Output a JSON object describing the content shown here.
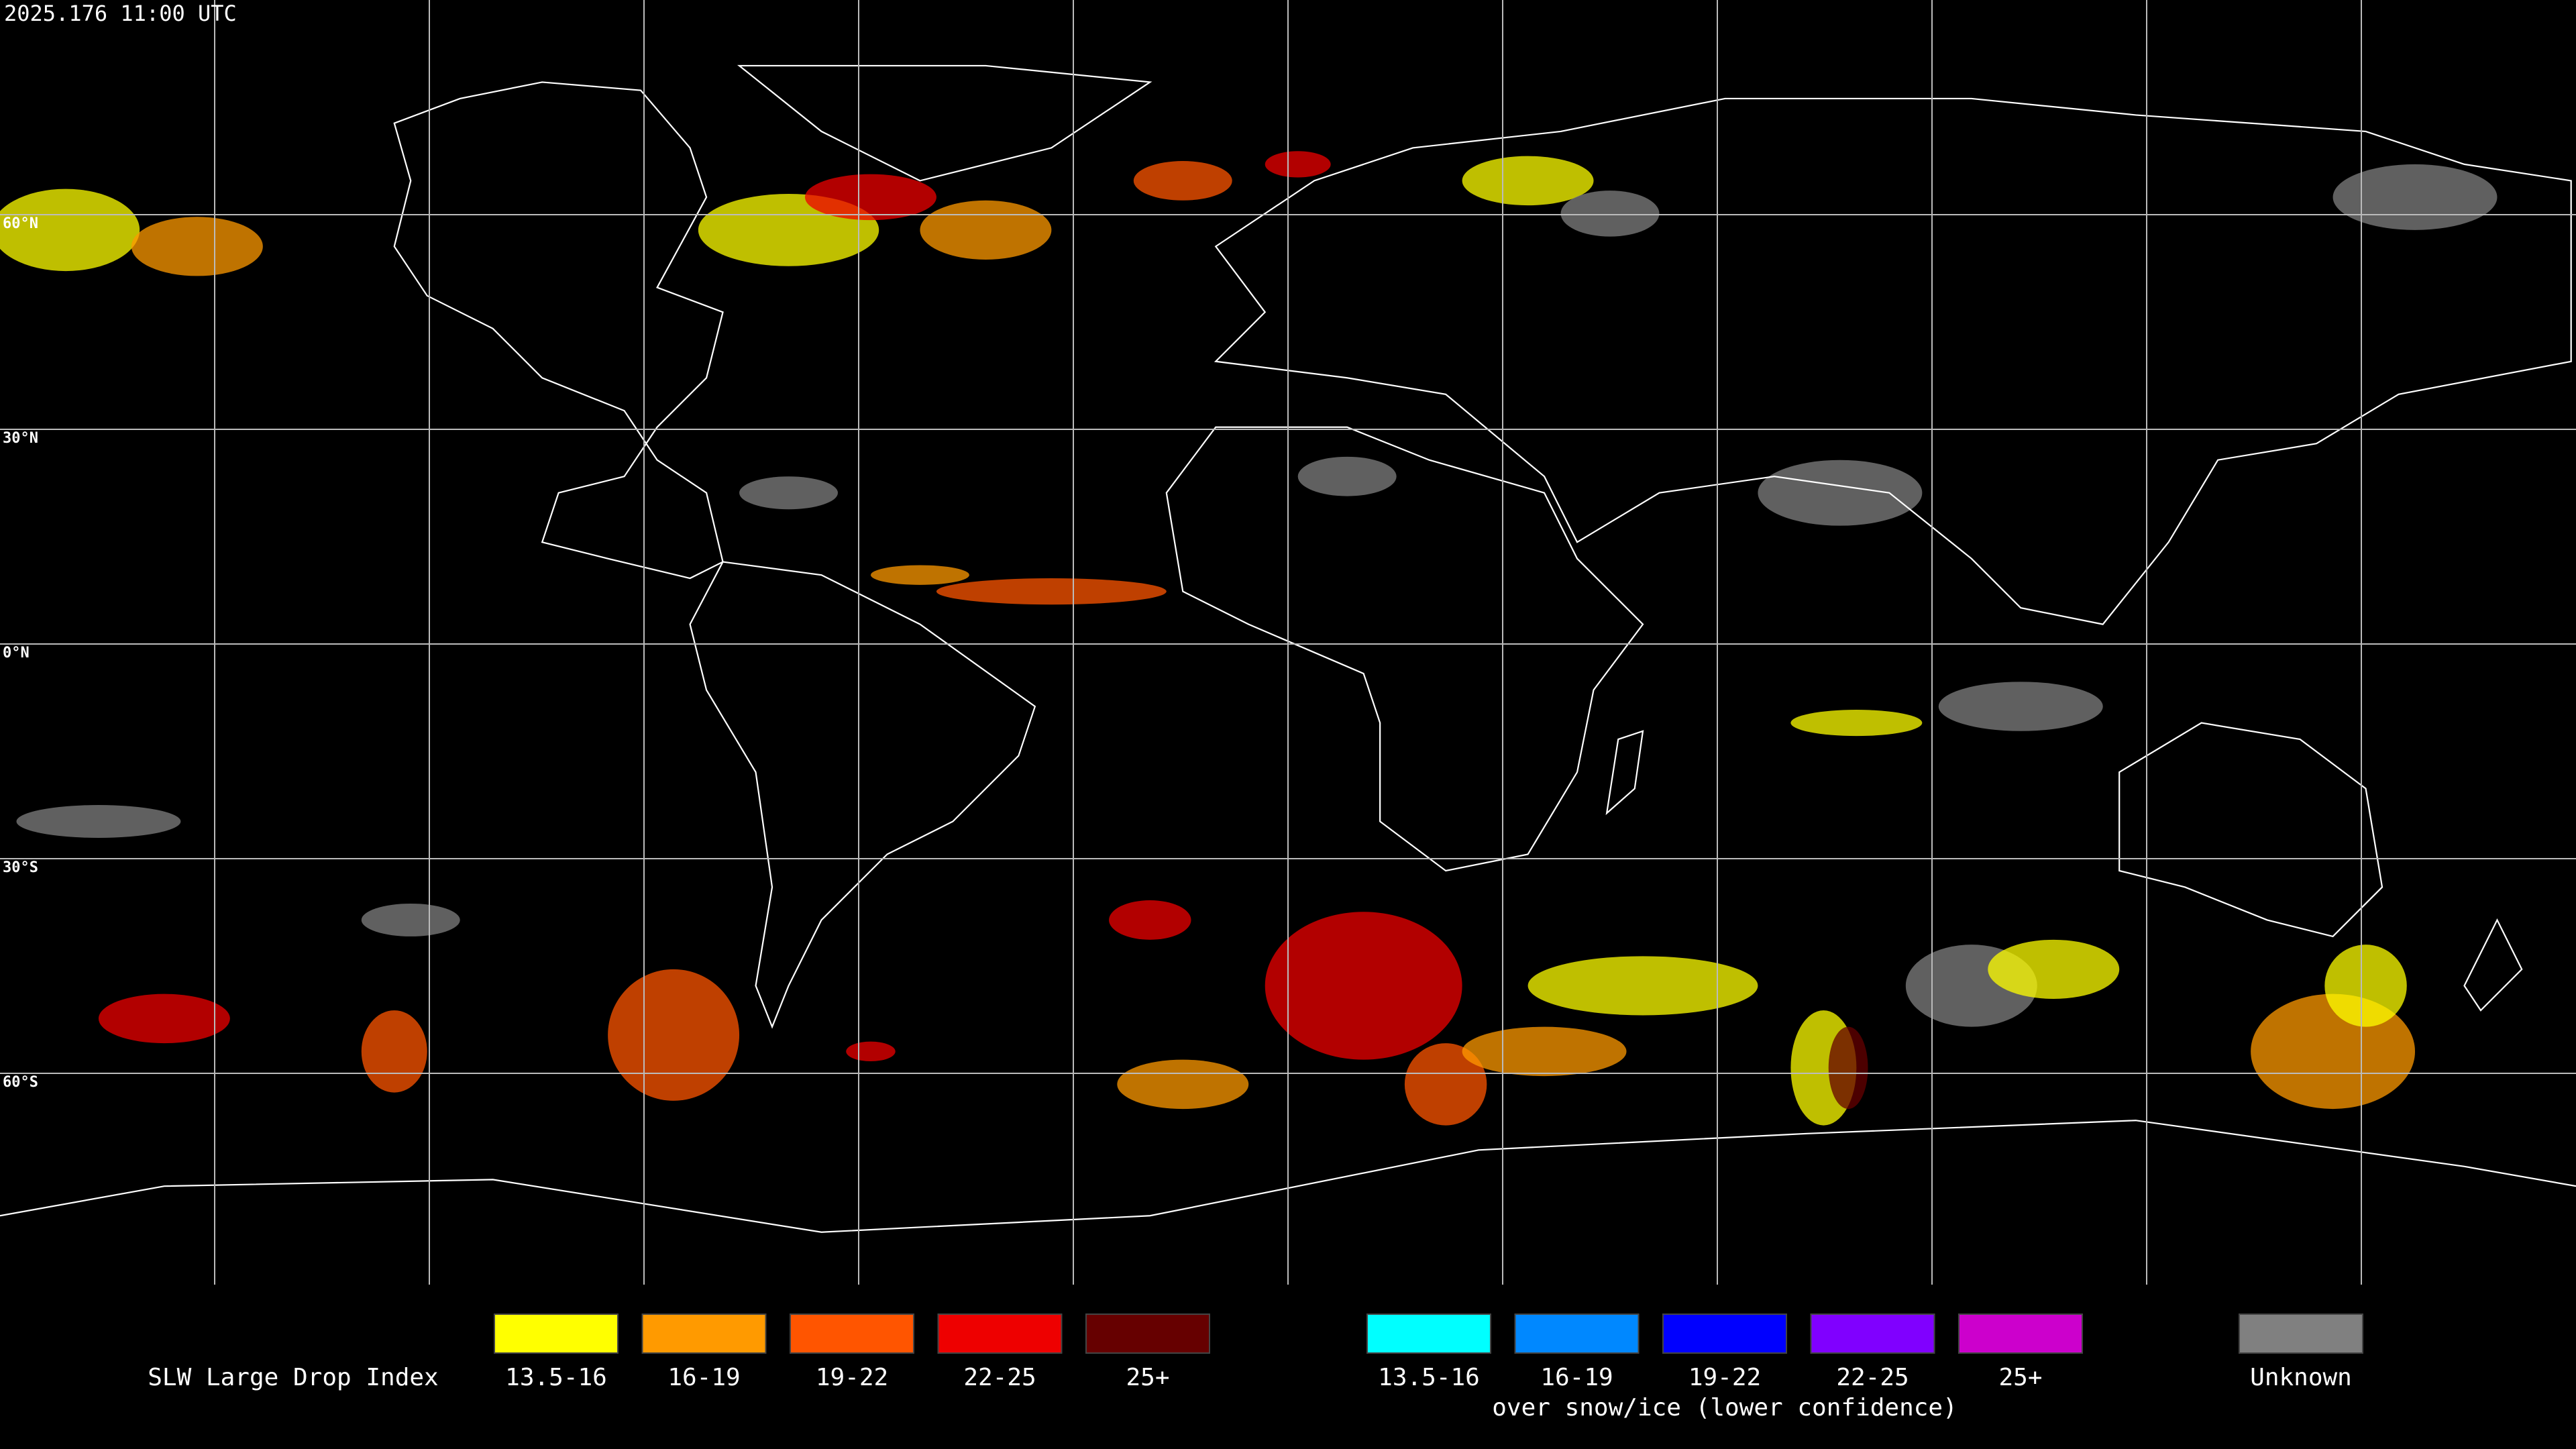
{
  "title": "2025.176 11:00 UTC",
  "map": {
    "latitude_labels": [
      "60°N",
      "30°N",
      "0°N",
      "30°S",
      "60°S"
    ]
  },
  "legend": {
    "title": "SLW Large Drop Index",
    "groups": [
      {
        "items": [
          {
            "label": "13.5-16",
            "color": "#ffff00"
          },
          {
            "label": "16-19",
            "color": "#ff9a00"
          },
          {
            "label": "19-22",
            "color": "#ff5500"
          },
          {
            "label": "22-25",
            "color": "#ee0000"
          },
          {
            "label": "25+",
            "color": "#660000"
          }
        ]
      },
      {
        "items": [
          {
            "label": "13.5-16",
            "color": "#00ffff"
          },
          {
            "label": "16-19",
            "color": "#0088ff"
          },
          {
            "label": "19-22",
            "color": "#0000ff"
          },
          {
            "label": "22-25",
            "color": "#8000ff"
          },
          {
            "label": "25+",
            "color": "#cc00cc"
          }
        ],
        "note": "over snow/ice (lower confidence)"
      }
    ],
    "unknown": {
      "label": "Unknown",
      "color": "#808080"
    }
  }
}
